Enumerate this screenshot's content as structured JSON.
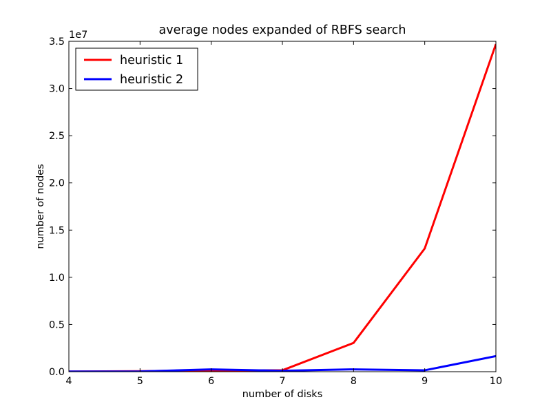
{
  "chart_data": {
    "type": "line",
    "title": "average nodes expanded of RBFS search",
    "xlabel": "number of disks",
    "ylabel": "number of nodes",
    "y_offset_label": "1e7",
    "xlim": [
      4,
      10
    ],
    "ylim": [
      0,
      35000000
    ],
    "x_ticks": [
      4,
      5,
      6,
      7,
      8,
      9,
      10
    ],
    "x_tick_labels": [
      "4",
      "5",
      "6",
      "7",
      "8",
      "9",
      "10"
    ],
    "y_ticks": [
      0,
      5000000,
      10000000,
      15000000,
      20000000,
      25000000,
      30000000,
      35000000
    ],
    "y_tick_labels": [
      "0.0",
      "0.5",
      "1.0",
      "1.5",
      "2.0",
      "2.5",
      "3.0",
      "3.5"
    ],
    "grid": false,
    "legend_position": "top-left",
    "x": [
      4,
      5,
      6,
      7,
      8,
      9,
      10
    ],
    "series": [
      {
        "name": "heuristic 1",
        "color": "#ff0000",
        "values": [
          20000,
          50000,
          150000,
          150000,
          3050000,
          13050000,
          34700000
        ]
      },
      {
        "name": "heuristic 2",
        "color": "#0000ff",
        "values": [
          20000,
          30000,
          250000,
          100000,
          250000,
          150000,
          1650000
        ]
      }
    ]
  }
}
